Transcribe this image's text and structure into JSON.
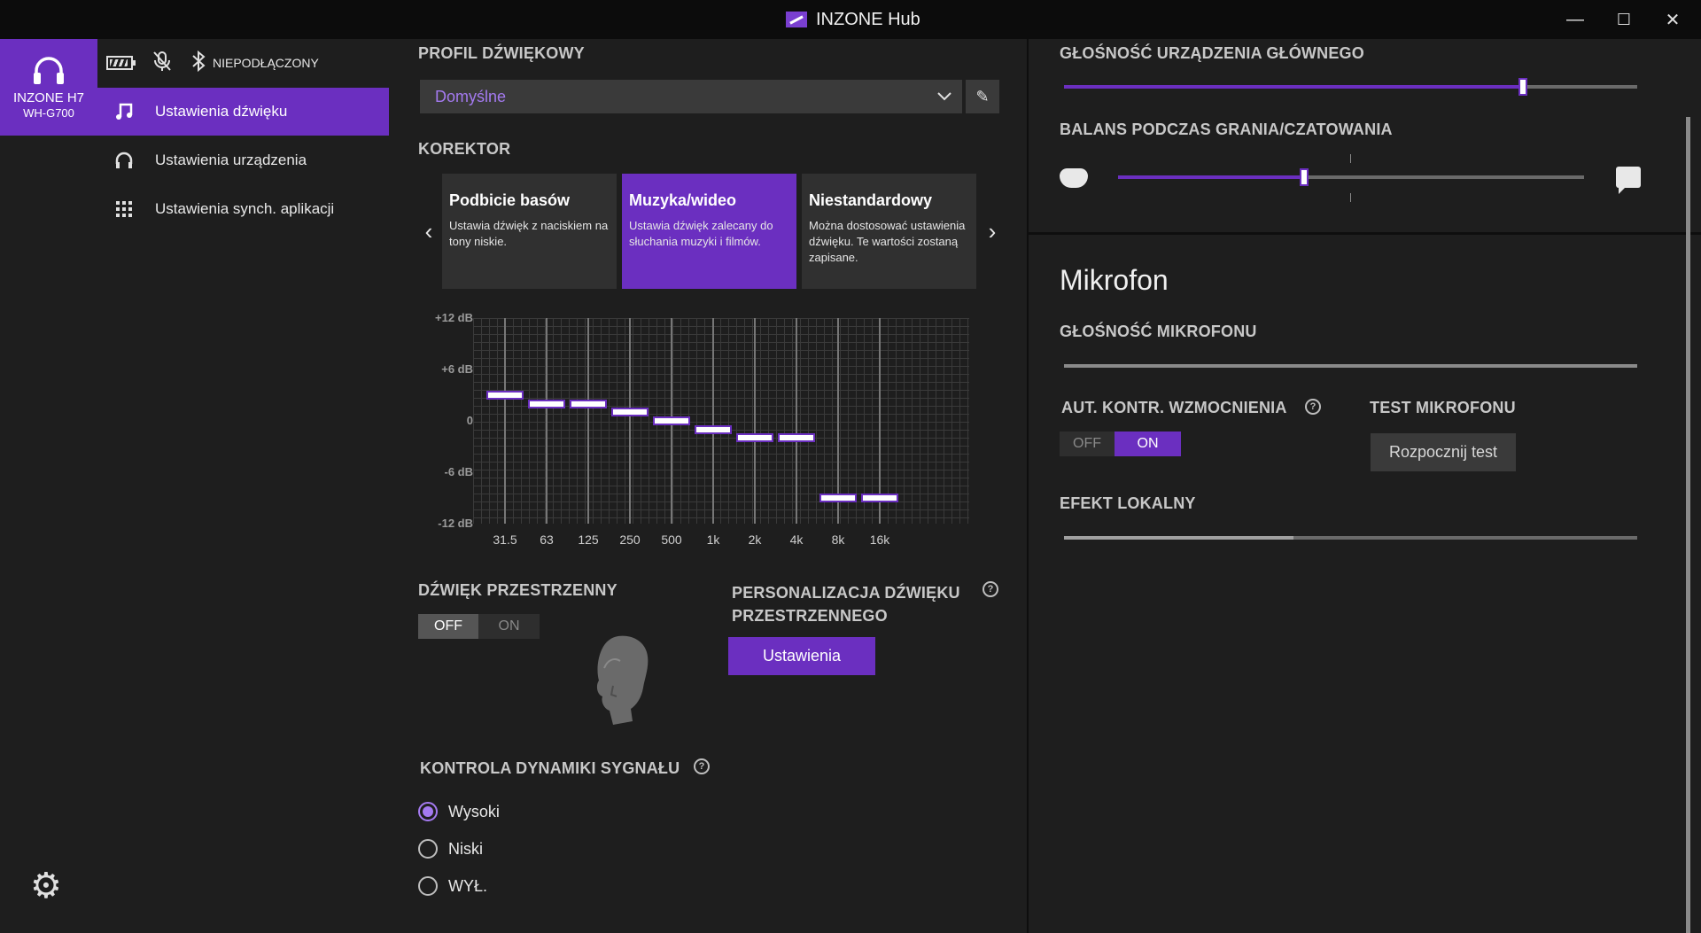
{
  "window": {
    "title": "INZONE Hub",
    "minimize": "—",
    "maximize": "☐",
    "close": "✕"
  },
  "device": {
    "name": "INZONE H7",
    "model": "WH-G700",
    "bluetooth_status": "NIEPODŁĄCZONY"
  },
  "nav": {
    "items": [
      {
        "label": "Ustawienia dźwięku",
        "icon": "music-note-icon",
        "active": true
      },
      {
        "label": "Ustawienia urządzenia",
        "icon": "headphones-icon",
        "active": false
      },
      {
        "label": "Ustawienia synch. aplikacji",
        "icon": "grid-icon",
        "active": false
      }
    ]
  },
  "sound_profile": {
    "label": "PROFIL DŹWIĘKOWY",
    "value": "Domyślne"
  },
  "equalizer": {
    "label": "KOREKTOR",
    "presets": [
      {
        "title": "Podbicie basów",
        "desc": "Ustawia dźwięk z naciskiem na tony niskie."
      },
      {
        "title": "Muzyka/wideo",
        "desc": "Ustawia dźwięk zalecany do słuchania muzyki i filmów."
      },
      {
        "title": "Niestandardowy",
        "desc": "Można dostosować ustawienia dźwięku. Te wartości zostaną zapisane."
      }
    ],
    "selected_preset": "Muzyka/wideo",
    "y_labels": [
      "+12 dB",
      "+6 dB",
      "0",
      "-6 dB",
      "-12 dB"
    ],
    "bands": [
      "31.5",
      "63",
      "125",
      "250",
      "500",
      "1k",
      "2k",
      "4k",
      "8k",
      "16k"
    ],
    "gains_db": [
      3,
      2,
      2,
      1,
      0,
      -1,
      -2,
      -2,
      -9,
      -9
    ],
    "range_db": [
      -12,
      12
    ]
  },
  "surround": {
    "label": "DŹWIĘK PRZESTRZENNY",
    "off": "OFF",
    "on": "ON",
    "state": "OFF"
  },
  "personalization": {
    "label_line1": "PERSONALIZACJA DŹWIĘKU",
    "label_line2": "PRZESTRZENNEGO",
    "button": "Ustawienia",
    "help": "?"
  },
  "dynamics": {
    "label": "KONTROLA DYNAMIKI SYGNAŁU",
    "help": "?",
    "options": [
      "Wysoki",
      "Niski",
      "WYŁ."
    ],
    "selected": "Wysoki"
  },
  "main_volume": {
    "label": "GŁOŚNOŚĆ URZĄDZENIA GŁÓWNEGO",
    "level": 0.8
  },
  "balance": {
    "label": "BALANS PODCZAS GRANIA/CZATOWANIA",
    "level": 0.4,
    "left_icon": "gamepad-icon",
    "right_icon": "chat-icon"
  },
  "microphone": {
    "title": "Mikrofon",
    "volume_label": "GŁOŚNOŚĆ MIKROFONU",
    "agc_label": "AUT. KONTR. WZMOCNIENIA",
    "agc_help": "?",
    "agc_off": "OFF",
    "agc_on": "ON",
    "agc_state": "ON",
    "test_label": "TEST MIKROFONU",
    "test_button": "Rozpocznij test",
    "sidetone_label": "EFEKT LOKALNY",
    "sidetone_level": 0.4
  },
  "colors": {
    "accent": "#6b2fc0",
    "accent_light": "#a47af0",
    "background": "#1e1e1e",
    "titlebar": "#0c0c0c"
  }
}
